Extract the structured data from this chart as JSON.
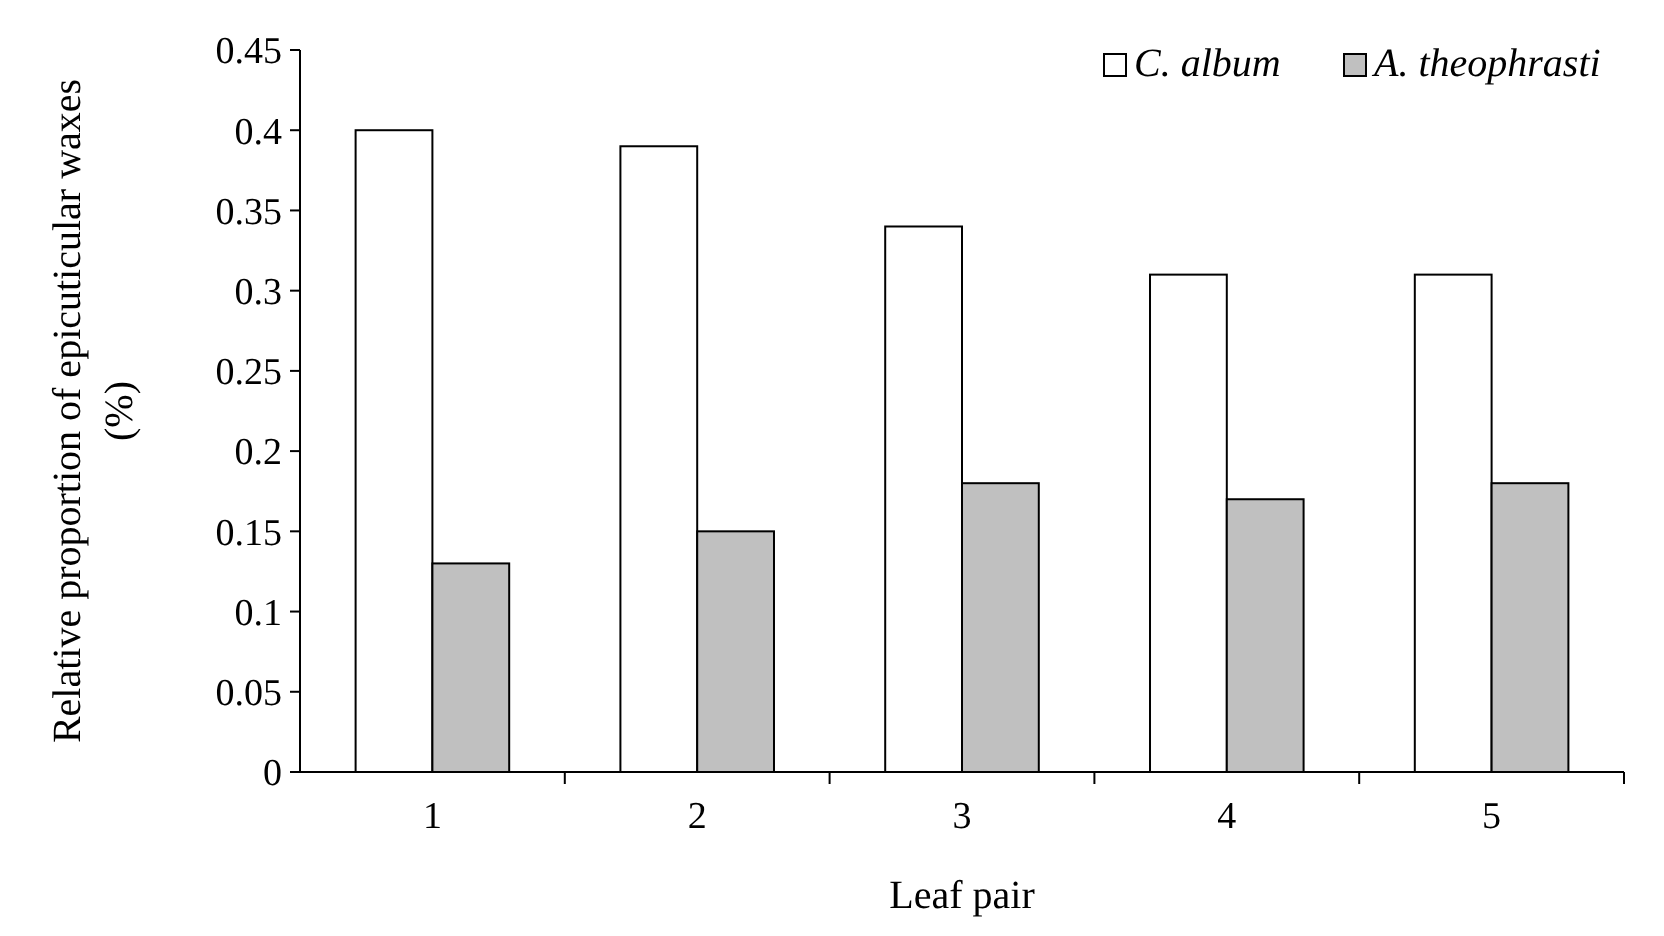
{
  "chart_data": {
    "type": "bar",
    "xlabel": "Leaf pair",
    "ylabel": "Relative proportion of epicuticular waxes (%)",
    "categories": [
      "1",
      "2",
      "3",
      "4",
      "5"
    ],
    "series": [
      {
        "name": "C. album",
        "color": "#ffffff",
        "values": [
          0.4,
          0.39,
          0.34,
          0.31,
          0.31
        ]
      },
      {
        "name": "A. theophrasti",
        "color": "#c0c0c0",
        "values": [
          0.13,
          0.15,
          0.18,
          0.17,
          0.18
        ]
      }
    ],
    "ylim": [
      0,
      0.45
    ],
    "yticks": [
      0,
      {
        "value": 0.05,
        "label": "0.05"
      },
      {
        "value": 0.1,
        "label": "0.1"
      },
      {
        "value": 0.15,
        "label": "0.15"
      },
      {
        "value": 0.2,
        "label": "0.2"
      },
      {
        "value": 0.25,
        "label": "0.25"
      },
      {
        "value": 0.3,
        "label": "0.3"
      },
      {
        "value": 0.35,
        "label": "0.35"
      },
      {
        "value": 0.4,
        "label": "0.4"
      },
      {
        "value": 0.45,
        "label": "0.45"
      }
    ],
    "grid": false,
    "legend": "top right"
  }
}
